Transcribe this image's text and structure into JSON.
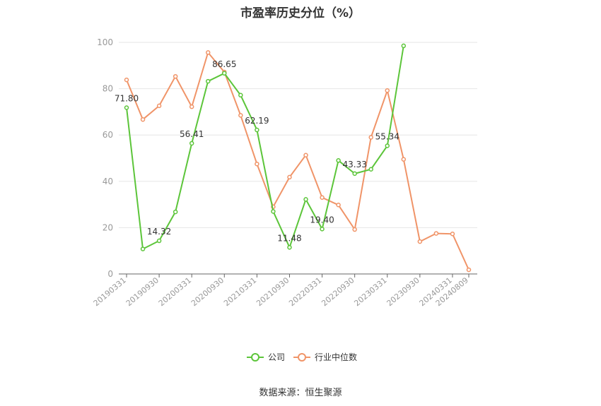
{
  "chart_data": {
    "type": "line",
    "title": "市盈率历史分位（%）",
    "source": "数据来源：恒生聚源",
    "xlabel": "",
    "ylabel": "",
    "ylim": [
      0,
      100
    ],
    "yticks": [
      0,
      20,
      40,
      60,
      80,
      100
    ],
    "grid": true,
    "legend_position": "bottom-center",
    "tick_labels": [
      "20190331",
      "20190930",
      "20200331",
      "20200930",
      "20210331",
      "20210930",
      "20220331",
      "20220930",
      "20230331",
      "20230930",
      "20240331",
      "20240809"
    ],
    "x": [
      "2019Q1",
      "2019Q2",
      "2019Q3",
      "2019Q4",
      "2020Q1",
      "2020Q2",
      "2020Q3",
      "2020Q4",
      "2021Q1",
      "2021Q2",
      "2021Q3",
      "2021Q4",
      "2022Q1",
      "2022Q2",
      "2022Q3",
      "2022Q4",
      "2023Q1",
      "2023Q2",
      "2023Q3",
      "2023Q4",
      "2024Q1",
      "20240809"
    ],
    "series": [
      {
        "name": "公司",
        "color": "#5cc53a",
        "values": [
          71.8,
          10.8,
          14.32,
          26.8,
          56.41,
          83.2,
          86.65,
          77.2,
          62.19,
          27.0,
          11.48,
          32.2,
          19.4,
          49.0,
          43.33,
          45.2,
          55.34,
          98.5,
          null,
          null,
          null,
          null
        ],
        "labels": [
          "71.80",
          null,
          "14.32",
          null,
          "56.41",
          null,
          "86.65",
          null,
          "62.19",
          null,
          "11.48",
          null,
          "19.40",
          null,
          "43.33",
          null,
          "55.34",
          null,
          null,
          null,
          null,
          null
        ]
      },
      {
        "name": "行业中位数",
        "color": "#f09468",
        "values": [
          83.8,
          66.7,
          72.6,
          85.3,
          72.2,
          95.6,
          87.2,
          68.5,
          47.5,
          29.0,
          41.8,
          51.3,
          33.0,
          29.8,
          19.2,
          59.0,
          79.2,
          49.5,
          14.0,
          17.5,
          17.3,
          1.8
        ]
      }
    ]
  }
}
